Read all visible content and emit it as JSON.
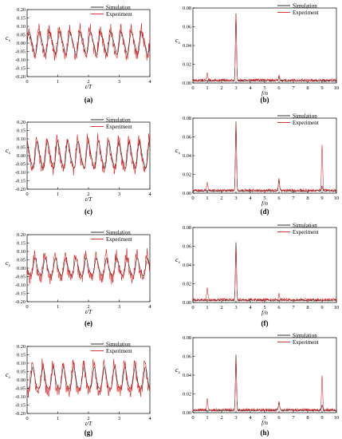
{
  "colors": {
    "simulation": "#1a1a1a",
    "experiment": "#d62020",
    "axis": "#000000"
  },
  "chart_data": [
    {
      "type": "line",
      "label": "(a)",
      "xlabel": "t/T",
      "ylabel": "c s",
      "xlim": [
        0,
        4
      ],
      "ylim": [
        -0.2,
        0.2
      ],
      "xticks": [
        "0",
        "1",
        "2",
        "3",
        "4"
      ],
      "yticks": [
        "0.20",
        "0.15",
        "0.10",
        "0.05",
        "0.00",
        "-0.05",
        "-0.10",
        "-0.15",
        "-0.20"
      ],
      "legend": "top-right",
      "series": [
        {
          "name": "Simulation",
          "pattern": "periodic",
          "period": 0.3333,
          "amplitude": 0.075,
          "offset": 0.0
        },
        {
          "name": "Experiment",
          "pattern": "periodic-noisy",
          "period": 0.3333,
          "amplitude": 0.09,
          "offset": 0.0
        }
      ]
    },
    {
      "type": "line",
      "label": "(b)",
      "xlabel": "f/n",
      "ylabel": "c s",
      "xlim": [
        0,
        10
      ],
      "ylim": [
        0,
        0.08
      ],
      "xticks": [
        "0",
        "1",
        "2",
        "3",
        "4",
        "5",
        "6",
        "7",
        "8",
        "9",
        "10"
      ],
      "yticks": [
        "0.08",
        "0.06",
        "0.04",
        "0.02",
        "0.00"
      ],
      "legend": "top-right",
      "series": [
        {
          "name": "Simulation",
          "peaks": [
            [
              3,
              0.072
            ],
            [
              6,
              0.004
            ]
          ]
        },
        {
          "name": "Experiment",
          "peaks": [
            [
              1,
              0.008
            ],
            [
              3,
              0.071
            ],
            [
              6,
              0.006
            ]
          ]
        }
      ]
    },
    {
      "type": "line",
      "label": "(c)",
      "xlabel": "t/T",
      "ylabel": "c s",
      "xlim": [
        0,
        4
      ],
      "ylim": [
        -0.2,
        0.2
      ],
      "xticks": [
        "0",
        "1",
        "2",
        "3",
        "4"
      ],
      "yticks": [
        "0.20",
        "0.15",
        "0.10",
        "0.05",
        "0.00",
        "-0.05",
        "-0.10",
        "-0.15",
        "-0.20"
      ],
      "legend": "top-right",
      "series": [
        {
          "name": "Simulation",
          "pattern": "periodic",
          "period": 0.3333,
          "amplitude": 0.09,
          "offset": 0.0
        },
        {
          "name": "Experiment",
          "pattern": "periodic-noisy",
          "period": 0.3333,
          "amplitude": 0.1,
          "offset": 0.0
        }
      ]
    },
    {
      "type": "line",
      "label": "(d)",
      "xlabel": "f/n",
      "ylabel": "c s",
      "xlim": [
        0,
        10
      ],
      "ylim": [
        0,
        0.08
      ],
      "xticks": [
        "0",
        "1",
        "2",
        "3",
        "4",
        "5",
        "6",
        "7",
        "8",
        "9",
        "10"
      ],
      "yticks": [
        "0.08",
        "0.06",
        "0.04",
        "0.02",
        "0.00"
      ],
      "legend": "top-right",
      "series": [
        {
          "name": "Simulation",
          "peaks": [
            [
              3,
              0.075
            ],
            [
              6,
              0.012
            ],
            [
              9,
              0.005
            ]
          ]
        },
        {
          "name": "Experiment",
          "peaks": [
            [
              1,
              0.008
            ],
            [
              3,
              0.07
            ],
            [
              6,
              0.012
            ],
            [
              9,
              0.048
            ]
          ]
        }
      ]
    },
    {
      "type": "line",
      "label": "(e)",
      "xlabel": "t/T",
      "ylabel": "c s",
      "xlim": [
        0,
        4
      ],
      "ylim": [
        -0.2,
        0.2
      ],
      "xticks": [
        "0",
        "1",
        "2",
        "3",
        "4"
      ],
      "yticks": [
        "0.20",
        "0.15",
        "0.10",
        "0.05",
        "0.00",
        "-0.05",
        "-0.10",
        "-0.15",
        "-0.20"
      ],
      "legend": "top-right",
      "series": [
        {
          "name": "Simulation",
          "pattern": "periodic",
          "period": 0.3333,
          "amplitude": 0.06,
          "offset": 0.0
        },
        {
          "name": "Experiment",
          "pattern": "periodic-noisy",
          "period": 0.3333,
          "amplitude": 0.08,
          "offset": 0.0
        }
      ]
    },
    {
      "type": "line",
      "label": "(f)",
      "xlabel": "f/n",
      "ylabel": "c s",
      "xlim": [
        0,
        10
      ],
      "ylim": [
        0,
        0.08
      ],
      "xticks": [
        "0",
        "1",
        "2",
        "3",
        "4",
        "5",
        "6",
        "7",
        "8",
        "9",
        "10"
      ],
      "yticks": [
        "0.08",
        "0.06",
        "0.04",
        "0.02",
        "0.00"
      ],
      "legend": "top-right",
      "series": [
        {
          "name": "Simulation",
          "peaks": [
            [
              3,
              0.062
            ]
          ]
        },
        {
          "name": "Experiment",
          "peaks": [
            [
              1,
              0.012
            ],
            [
              3,
              0.055
            ],
            [
              6,
              0.006
            ]
          ]
        }
      ]
    },
    {
      "type": "line",
      "label": "(g)",
      "xlabel": "t/T",
      "ylabel": "c s",
      "xlim": [
        0,
        4
      ],
      "ylim": [
        -0.2,
        0.2
      ],
      "xticks": [
        "0",
        "1",
        "2",
        "3",
        "4"
      ],
      "yticks": [
        "0.20",
        "0.15",
        "0.10",
        "0.05",
        "0.00",
        "-0.05",
        "-0.10",
        "-0.15",
        "-0.20"
      ],
      "legend": "top-right",
      "series": [
        {
          "name": "Simulation",
          "pattern": "periodic",
          "period": 0.3333,
          "amplitude": 0.075,
          "offset": 0.0
        },
        {
          "name": "Experiment",
          "pattern": "periodic-noisy",
          "period": 0.3333,
          "amplitude": 0.1,
          "offset": 0.0
        }
      ]
    },
    {
      "type": "line",
      "label": "(h)",
      "xlabel": "f/n",
      "ylabel": "c s",
      "xlim": [
        0,
        10
      ],
      "ylim": [
        0,
        0.08
      ],
      "xticks": [
        "0",
        "1",
        "2",
        "3",
        "4",
        "5",
        "6",
        "7",
        "8",
        "9",
        "10"
      ],
      "yticks": [
        "0.08",
        "0.06",
        "0.04",
        "0.02",
        "0.00"
      ],
      "legend": "top-right",
      "series": [
        {
          "name": "Simulation",
          "peaks": [
            [
              3,
              0.059
            ],
            [
              6,
              0.009
            ],
            [
              9,
              0.006
            ]
          ]
        },
        {
          "name": "Experiment",
          "peaks": [
            [
              1,
              0.012
            ],
            [
              3,
              0.055
            ],
            [
              6,
              0.01
            ],
            [
              9,
              0.037
            ]
          ]
        }
      ]
    }
  ]
}
